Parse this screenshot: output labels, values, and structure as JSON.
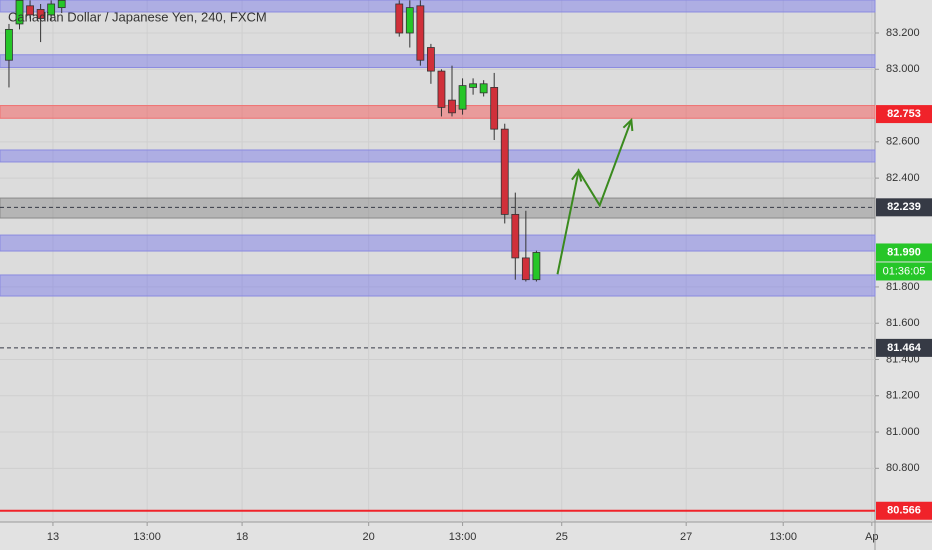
{
  "chart_data": {
    "type": "candlestick",
    "title": "Canadian Dollar / Japanese Yen, 240, FXCM",
    "x": [
      0,
      1,
      2,
      3,
      4,
      5,
      37,
      38,
      39,
      40,
      41,
      42,
      43,
      44,
      45,
      46,
      47,
      48,
      49,
      50
    ],
    "open": [
      83.05,
      83.25,
      83.35,
      83.33,
      83.3,
      83.34,
      83.36,
      83.2,
      83.35,
      83.12,
      82.99,
      82.83,
      82.78,
      82.9,
      82.87,
      82.9,
      82.67,
      82.2,
      81.96,
      81.84
    ],
    "high": [
      83.25,
      83.38,
      83.38,
      83.36,
      83.38,
      83.38,
      83.38,
      83.38,
      83.38,
      83.14,
      83.0,
      83.02,
      82.95,
      82.95,
      82.94,
      82.98,
      82.7,
      82.32,
      82.22,
      82.0
    ],
    "low": [
      82.9,
      83.22,
      83.28,
      83.15,
      83.27,
      83.31,
      83.18,
      83.12,
      83.02,
      82.92,
      82.74,
      82.74,
      82.75,
      82.86,
      82.85,
      82.61,
      82.15,
      81.84,
      81.83,
      81.83
    ],
    "close": [
      83.22,
      83.38,
      83.3,
      83.28,
      83.36,
      83.38,
      83.2,
      83.34,
      83.05,
      82.99,
      82.79,
      82.76,
      82.91,
      82.92,
      82.92,
      82.67,
      82.2,
      81.96,
      81.84,
      81.99
    ],
    "up_color": "#26c628",
    "down_color": "#d0303a",
    "xlim": [
      -0.85,
      82.1
    ],
    "xticks": [
      {
        "value": 4.17,
        "label": "13"
      },
      {
        "value": 13.1,
        "label": "13:00"
      },
      {
        "value": 22.1,
        "label": "18"
      },
      {
        "value": 34.1,
        "label": "20"
      },
      {
        "value": 43.0,
        "label": "13:00"
      },
      {
        "value": 52.4,
        "label": "25"
      },
      {
        "value": 64.2,
        "label": "27"
      },
      {
        "value": 73.4,
        "label": "13:00"
      },
      {
        "value": 81.8,
        "label": "Ap"
      }
    ],
    "ylim": [
      80.504,
      83.382
    ],
    "yticks": [
      {
        "value": 83.2,
        "label": "83.200"
      },
      {
        "value": 83.0,
        "label": "83.000"
      },
      {
        "value": 82.6,
        "label": "82.600"
      },
      {
        "value": 82.4,
        "label": "82.400"
      },
      {
        "value": 81.8,
        "label": "81.800"
      },
      {
        "value": 81.6,
        "label": "81.600"
      },
      {
        "value": 81.4,
        "label": "81.400"
      },
      {
        "value": 81.2,
        "label": "81.200"
      },
      {
        "value": 81.0,
        "label": "81.000"
      },
      {
        "value": 80.8,
        "label": "80.800"
      }
    ],
    "grid": true,
    "zones": [
      {
        "range": [
          83.316,
          83.382
        ],
        "color": "blue"
      },
      {
        "range": [
          83.01,
          83.08
        ],
        "color": "blue"
      },
      {
        "range": [
          82.489,
          82.555
        ],
        "color": "blue"
      },
      {
        "range": [
          81.998,
          82.086
        ],
        "color": "blue"
      },
      {
        "range": [
          81.75,
          81.866
        ],
        "color": "blue"
      },
      {
        "range": [
          82.73,
          82.8
        ],
        "color": "red"
      },
      {
        "range": [
          82.18,
          82.29
        ],
        "color": "gray"
      }
    ],
    "levels": [
      {
        "value": 82.239,
        "style": "dashed",
        "color": "#363a45"
      },
      {
        "value": 81.464,
        "style": "dashed",
        "color": "#363a45"
      },
      {
        "value": 80.566,
        "style": "solid",
        "color": "#f0232a"
      }
    ],
    "price_labels": [
      {
        "value": 82.753,
        "label": "82.753",
        "color": "#f0232a"
      },
      {
        "value": 82.239,
        "label": "82.239",
        "color": "#363a45"
      },
      {
        "value": 81.99,
        "label": "81.990",
        "color": "#26c628"
      },
      {
        "value": 81.464,
        "label": "81.464",
        "color": "#363a45"
      },
      {
        "value": 80.566,
        "label": "80.566",
        "color": "#f0232a"
      }
    ],
    "countdown": "01:36:05",
    "projection": {
      "x": [
        52,
        54,
        56,
        59
      ],
      "y": [
        81.87,
        82.44,
        82.25,
        82.72
      ],
      "color": "#3a8a1e"
    }
  }
}
